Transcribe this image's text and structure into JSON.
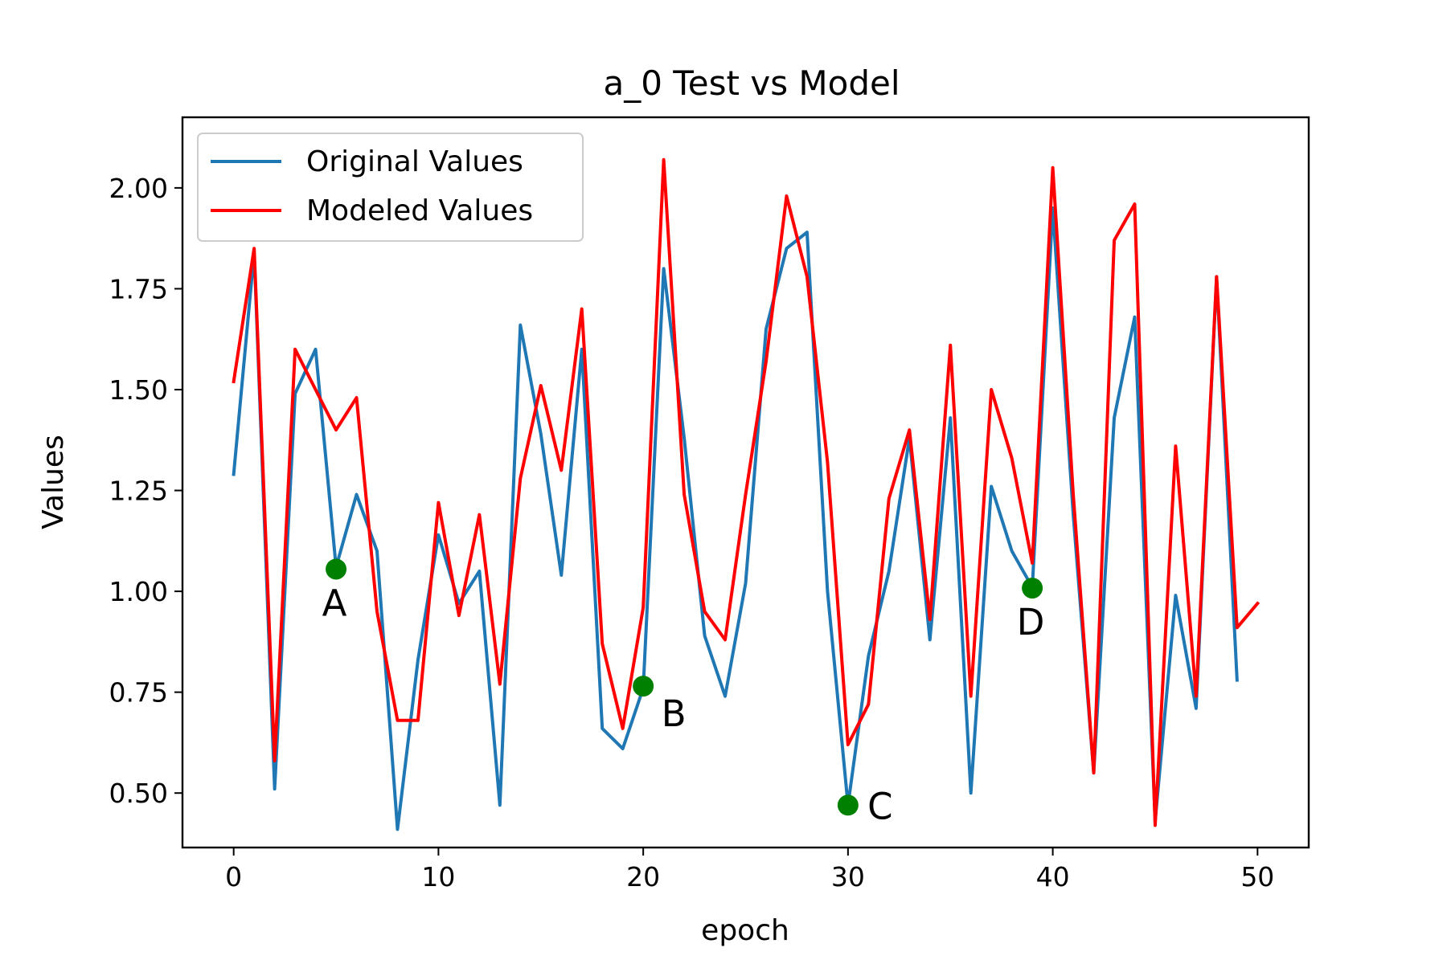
{
  "chart_data": {
    "type": "line",
    "title": "a_0 Test vs Model",
    "xlabel": "epoch",
    "ylabel": "Values",
    "xlim": [
      -2.5,
      52.5
    ],
    "ylim": [
      0.365,
      2.175
    ],
    "xticks": [
      0,
      10,
      20,
      30,
      40,
      50
    ],
    "xtick_labels": [
      "0",
      "10",
      "20",
      "30",
      "40",
      "50"
    ],
    "yticks": [
      0.5,
      0.75,
      1.0,
      1.25,
      1.5,
      1.75,
      2.0
    ],
    "ytick_labels": [
      "0.50",
      "0.75",
      "1.00",
      "1.25",
      "1.50",
      "1.75",
      "2.00"
    ],
    "grid": false,
    "legend_position": "top-left",
    "series": [
      {
        "name": "Original Values",
        "color": "#1f77b4",
        "x": [
          0,
          1,
          2,
          3,
          4,
          5,
          6,
          7,
          8,
          9,
          10,
          11,
          12,
          13,
          14,
          15,
          16,
          17,
          18,
          19,
          20,
          21,
          22,
          23,
          24,
          25,
          26,
          27,
          28,
          29,
          30,
          31,
          32,
          33,
          34,
          35,
          36,
          37,
          38,
          39,
          40,
          41,
          42,
          43,
          44,
          45,
          46,
          47,
          48,
          49
        ],
        "values": [
          1.29,
          1.84,
          0.51,
          1.49,
          1.6,
          1.06,
          1.24,
          1.1,
          0.41,
          0.83,
          1.14,
          0.97,
          1.05,
          0.47,
          1.66,
          1.39,
          1.04,
          1.6,
          0.66,
          0.61,
          0.76,
          1.8,
          1.38,
          0.89,
          0.74,
          1.02,
          1.65,
          1.85,
          1.89,
          1.0,
          0.47,
          0.84,
          1.05,
          1.38,
          0.88,
          1.43,
          0.5,
          1.26,
          1.1,
          1.01,
          1.95,
          1.19,
          0.55,
          1.43,
          1.68,
          0.43,
          0.99,
          0.71,
          1.78,
          0.78
        ]
      },
      {
        "name": "Modeled Values",
        "color": "#ff0000",
        "x": [
          0,
          1,
          2,
          3,
          4,
          5,
          6,
          7,
          8,
          9,
          10,
          11,
          12,
          13,
          14,
          15,
          16,
          17,
          18,
          19,
          20,
          21,
          22,
          23,
          24,
          25,
          26,
          27,
          28,
          29,
          30,
          31,
          32,
          33,
          34,
          35,
          36,
          37,
          38,
          39,
          40,
          41,
          42,
          43,
          44,
          45,
          46,
          47,
          48,
          49,
          50
        ],
        "values": [
          1.52,
          1.85,
          0.58,
          1.6,
          1.5,
          1.4,
          1.48,
          0.95,
          0.68,
          0.68,
          1.22,
          0.94,
          1.19,
          0.77,
          1.28,
          1.51,
          1.3,
          1.7,
          0.87,
          0.66,
          0.96,
          2.07,
          1.24,
          0.95,
          0.88,
          1.24,
          1.57,
          1.98,
          1.78,
          1.32,
          0.62,
          0.72,
          1.23,
          1.4,
          0.93,
          1.61,
          0.74,
          1.5,
          1.33,
          1.07,
          2.05,
          1.24,
          0.55,
          1.87,
          1.96,
          0.42,
          1.36,
          0.74,
          1.78,
          0.91,
          0.97
        ]
      }
    ],
    "highlight_points": [
      {
        "label": "A",
        "x": 5,
        "y": 1.055,
        "label_side": "below"
      },
      {
        "label": "B",
        "x": 20,
        "y": 0.765,
        "label_side": "below-right"
      },
      {
        "label": "C",
        "x": 30,
        "y": 0.47,
        "label_side": "right"
      },
      {
        "label": "D",
        "x": 39,
        "y": 1.008,
        "label_side": "below"
      }
    ],
    "highlight_color": "#008000"
  }
}
